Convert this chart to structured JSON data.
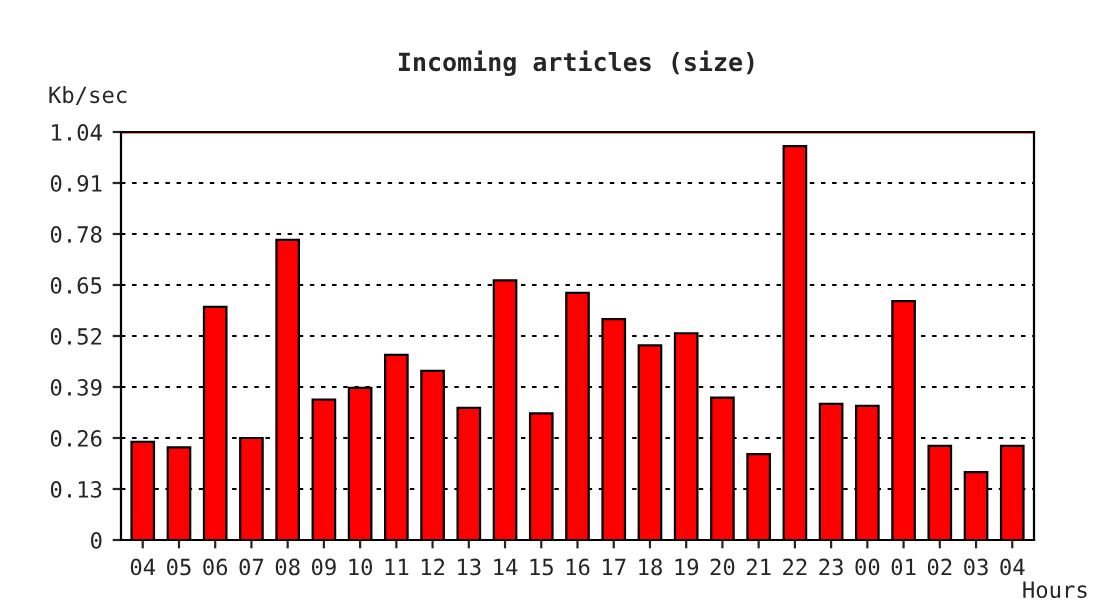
{
  "chart_data": {
    "type": "bar",
    "title": "Incoming articles (size)",
    "ylabel": "Kb/sec",
    "xlabel": "Hours",
    "categories": [
      "04",
      "05",
      "06",
      "07",
      "08",
      "09",
      "10",
      "11",
      "12",
      "13",
      "14",
      "15",
      "16",
      "17",
      "18",
      "19",
      "20",
      "21",
      "22",
      "23",
      "00",
      "01",
      "02",
      "03",
      "04"
    ],
    "series": [
      {
        "color": "#ff0000",
        "values": [
          0.25,
          0.236,
          0.594,
          0.26,
          0.765,
          0.358,
          0.388,
          0.472,
          0.431,
          0.337,
          0.662,
          0.323,
          0.63,
          0.563,
          0.496,
          0.527,
          0.363,
          0.219,
          1.004,
          0.347,
          0.342,
          0.609,
          0.24,
          0.173,
          0.24
        ]
      }
    ],
    "ylim": [
      0,
      1.04
    ],
    "yticks": [
      0,
      0.13,
      0.26,
      0.39,
      0.52,
      0.65,
      0.78,
      0.91,
      1.04
    ],
    "grid": "y",
    "legend": false,
    "ref_lines": [
      {
        "axis": "y",
        "value": 1.04,
        "color": "#ff0000",
        "line_style": "solid"
      }
    ]
  }
}
